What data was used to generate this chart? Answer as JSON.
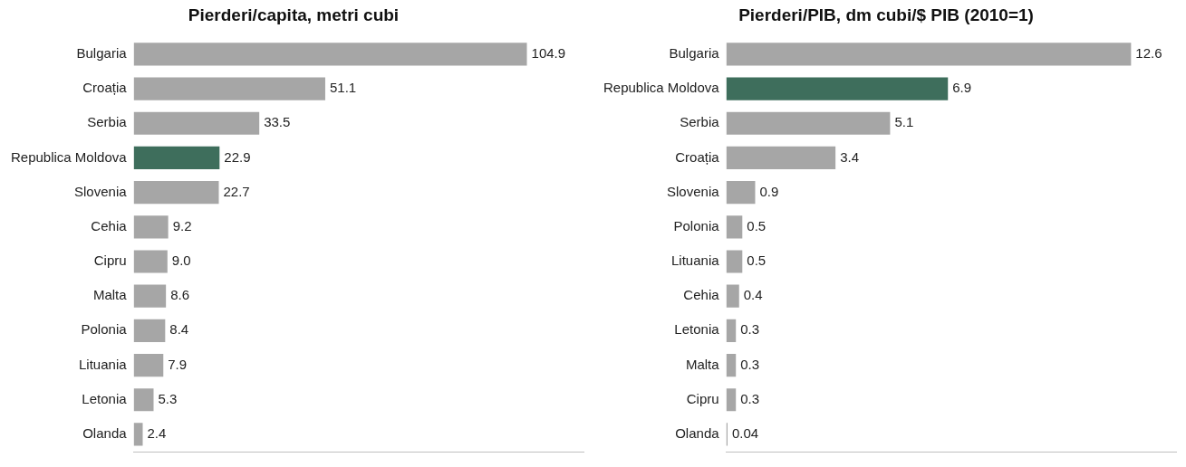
{
  "chart_data": [
    {
      "type": "bar",
      "orientation": "horizontal",
      "title": "Pierderi/capita, metri cubi",
      "categories": [
        "Bulgaria",
        "Croația",
        "Serbia",
        "Republica Moldova",
        "Slovenia",
        "Cehia",
        "Cipru",
        "Malta",
        "Polonia",
        "Lituania",
        "Letonia",
        "Olanda"
      ],
      "values": [
        104.9,
        51.1,
        33.5,
        22.9,
        22.7,
        9.2,
        9.0,
        8.6,
        8.4,
        7.9,
        5.3,
        2.4
      ],
      "value_labels": [
        "104.9",
        "51.1",
        "33.5",
        "22.9",
        "22.7",
        "9.2",
        "9.0",
        "8.6",
        "8.4",
        "7.9",
        "5.3",
        "2.4"
      ],
      "colors": [
        "#a6a6a6",
        "#a6a6a6",
        "#a6a6a6",
        "#3e6e5c",
        "#a6a6a6",
        "#a6a6a6",
        "#a6a6a6",
        "#a6a6a6",
        "#a6a6a6",
        "#a6a6a6",
        "#a6a6a6",
        "#a6a6a6"
      ],
      "grid": false,
      "legend": false,
      "tick_labels": "y"
    },
    {
      "type": "bar",
      "orientation": "horizontal",
      "title": "Pierderi/PIB, dm cubi/$ PIB (2010=1)",
      "categories": [
        "Bulgaria",
        "Republica Moldova",
        "Serbia",
        "Croația",
        "Slovenia",
        "Polonia",
        "Lituania",
        "Cehia",
        "Letonia",
        "Malta",
        "Cipru",
        "Olanda"
      ],
      "values": [
        12.6,
        6.9,
        5.1,
        3.4,
        0.9,
        0.5,
        0.5,
        0.4,
        0.3,
        0.3,
        0.3,
        0.04
      ],
      "value_labels": [
        "12.6",
        "6.9",
        "5.1",
        "3.4",
        "0.9",
        "0.5",
        "0.5",
        "0.4",
        "0.3",
        "0.3",
        "0.3",
        "0.04"
      ],
      "colors": [
        "#a6a6a6",
        "#3e6e5c",
        "#a6a6a6",
        "#a6a6a6",
        "#a6a6a6",
        "#a6a6a6",
        "#a6a6a6",
        "#a6a6a6",
        "#a6a6a6",
        "#a6a6a6",
        "#a6a6a6",
        "#a6a6a6"
      ],
      "grid": false,
      "legend": false,
      "tick_labels": "y"
    }
  ]
}
